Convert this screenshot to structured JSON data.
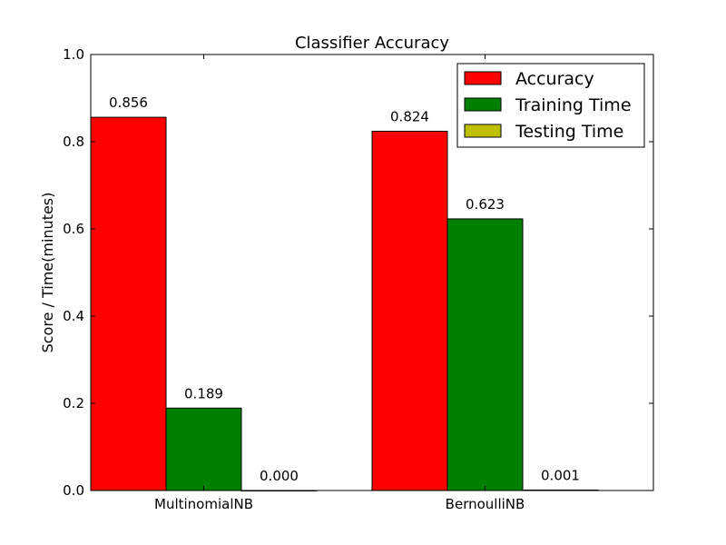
{
  "chart_data": {
    "type": "bar",
    "title": "Classifier Accuracy",
    "xlabel": "",
    "ylabel": "Score / Time(minutes)",
    "ylim": [
      0.0,
      1.0
    ],
    "yticks": [
      "0.0",
      "0.2",
      "0.4",
      "0.6",
      "0.8",
      "1.0"
    ],
    "categories": [
      "MultinomialNB",
      "BernoulliNB"
    ],
    "series": [
      {
        "name": "Accuracy",
        "color": "#ff0000",
        "values": [
          0.856,
          0.824
        ],
        "labels": [
          "0.856",
          "0.824"
        ]
      },
      {
        "name": "Training Time",
        "color": "#008000",
        "values": [
          0.189,
          0.623
        ],
        "labels": [
          "0.189",
          "0.623"
        ]
      },
      {
        "name": "Testing Time",
        "color": "#bfbf00",
        "values": [
          0.0,
          0.001
        ],
        "labels": [
          "0.000",
          "0.001"
        ]
      }
    ],
    "grid": false,
    "legend_position": "top-right"
  }
}
